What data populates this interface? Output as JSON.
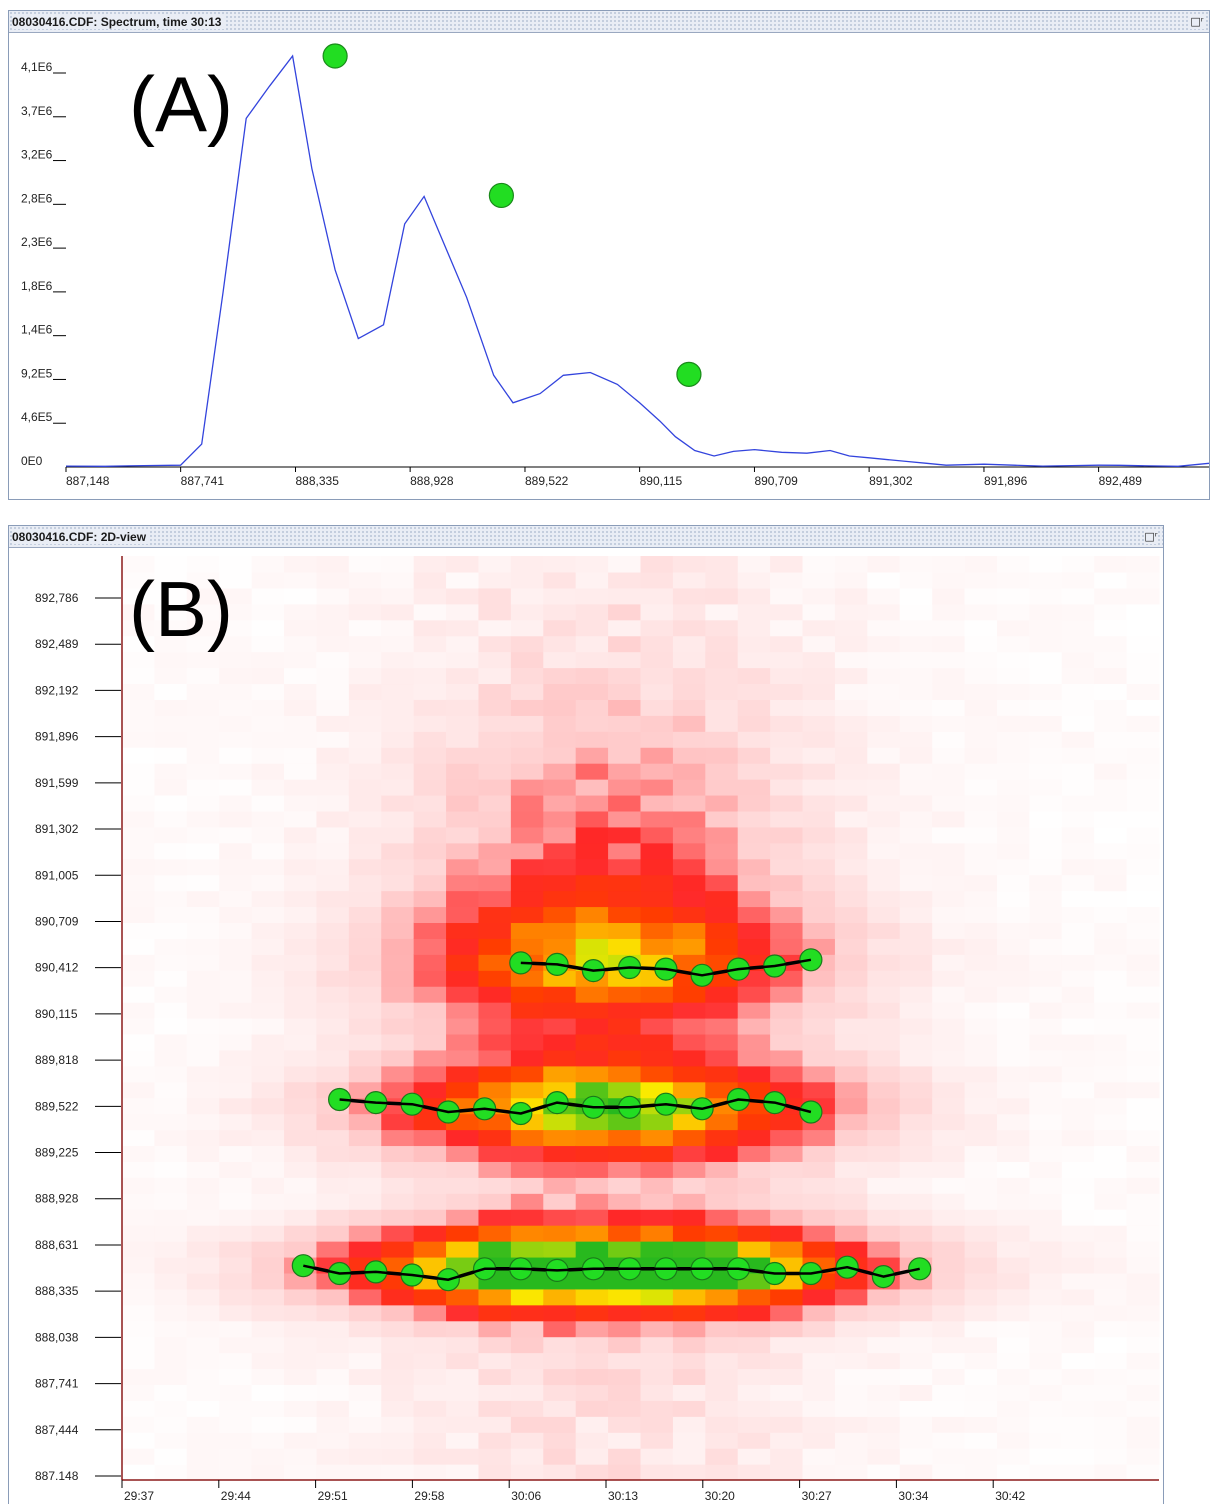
{
  "panel_a": {
    "window_title": "08030416.CDF: Spectrum, time 30:13",
    "panel_label": "(A)",
    "chart_data": {
      "type": "line",
      "title": "",
      "xlabel": "",
      "ylabel": "",
      "x_ticks": [
        "887,148",
        "887,741",
        "888,335",
        "888,928",
        "889,522",
        "890,115",
        "890,709",
        "891,302",
        "891,896",
        "892,489"
      ],
      "y_ticks": [
        "0E0",
        "4,6E5",
        "9,2E5",
        "1,4E6",
        "1,8E6",
        "2,3E6",
        "2,8E6",
        "3,2E6",
        "3,7E6",
        "4,1E6"
      ],
      "xlim": [
        887.148,
        893.06
      ],
      "ylim": [
        0,
        4600000.0
      ],
      "series": [
        {
          "color": "#3344dd",
          "x": [
            887.148,
            887.35,
            887.55,
            887.741,
            887.85,
            887.96,
            888.08,
            888.2,
            888.32,
            888.42,
            888.54,
            888.66,
            888.79,
            888.9,
            889.0,
            889.08,
            889.22,
            889.36,
            889.46,
            889.6,
            889.72,
            889.86,
            890.0,
            890.115,
            890.22,
            890.3,
            890.4,
            890.5,
            890.6,
            890.709,
            890.85,
            890.98,
            891.1,
            891.2,
            891.302,
            891.4,
            891.5,
            891.6,
            891.7,
            891.896,
            892.05,
            892.2,
            892.35,
            892.489,
            892.6,
            892.75,
            892.9,
            893.06
          ],
          "y": [
            10000,
            8000,
            15000,
            20000,
            250000,
            1900000,
            3800000,
            4150000,
            4480000,
            3250000,
            2150000,
            1400000,
            1550000,
            2650000,
            2950000,
            2550000,
            1850000,
            1000000,
            700000,
            800000,
            1000000,
            1030000,
            900000,
            700000,
            500000,
            330000,
            180000,
            120000,
            170000,
            190000,
            160000,
            150000,
            180000,
            120000,
            100000,
            80000,
            60000,
            40000,
            20000,
            30000,
            20000,
            10000,
            15000,
            20000,
            18000,
            12000,
            8000,
            40000
          ]
        }
      ],
      "markers": [
        {
          "x": 888.54,
          "y": 4480000,
          "color": "#22dd22"
        },
        {
          "x": 889.4,
          "y": 2960000,
          "color": "#22dd22"
        },
        {
          "x": 890.37,
          "y": 1010000,
          "color": "#22dd22"
        }
      ]
    }
  },
  "panel_b": {
    "window_title": "08030416.CDF: 2D-view",
    "panel_label": "(B)",
    "chart_data": {
      "type": "heatmap",
      "title": "",
      "xlabel": "",
      "ylabel": "",
      "x_ticks": [
        "29:37",
        "29:44",
        "29:51",
        "29:58",
        "30:06",
        "30:13",
        "30:20",
        "30:27",
        "30:34",
        "30:42"
      ],
      "y_ticks": [
        "892,786",
        "892,489",
        "892,192",
        "891,896",
        "891,599",
        "891,302",
        "891,005",
        "890,709",
        "890,412",
        "890,115",
        "889,818",
        "889,522",
        "889,225",
        "888,928",
        "888,631",
        "888,335",
        "888,038",
        "887,741",
        "887,444",
        "887.148"
      ],
      "colormap": [
        "#ffffff",
        "#ffb0b0",
        "#ff2020",
        "#ff8a00",
        "#ffee00",
        "#33bb22"
      ],
      "traces": [
        {
          "color": "#000000",
          "marker_color": "#22dd22",
          "points": [
            [
              30.1,
              890.43
            ],
            [
              30.15,
              890.42
            ],
            [
              30.2,
              890.38
            ],
            [
              30.25,
              890.4
            ],
            [
              30.3,
              890.39
            ],
            [
              30.35,
              890.35
            ],
            [
              30.4,
              890.39
            ],
            [
              30.45,
              890.41
            ],
            [
              30.5,
              890.45
            ]
          ]
        },
        {
          "color": "#000000",
          "marker_color": "#22dd22",
          "points": [
            [
              29.85,
              889.55
            ],
            [
              29.9,
              889.53
            ],
            [
              29.95,
              889.52
            ],
            [
              30.0,
              889.47
            ],
            [
              30.05,
              889.49
            ],
            [
              30.1,
              889.46
            ],
            [
              30.15,
              889.53
            ],
            [
              30.2,
              889.5
            ],
            [
              30.25,
              889.5
            ],
            [
              30.3,
              889.52
            ],
            [
              30.35,
              889.49
            ],
            [
              30.4,
              889.55
            ],
            [
              30.45,
              889.53
            ],
            [
              30.5,
              889.47
            ]
          ]
        },
        {
          "color": "#000000",
          "marker_color": "#22dd22",
          "points": [
            [
              29.8,
              888.48
            ],
            [
              29.85,
              888.43
            ],
            [
              29.9,
              888.44
            ],
            [
              29.95,
              888.42
            ],
            [
              30.0,
              888.39
            ],
            [
              30.05,
              888.46
            ],
            [
              30.1,
              888.46
            ],
            [
              30.15,
              888.45
            ],
            [
              30.2,
              888.46
            ],
            [
              30.25,
              888.46
            ],
            [
              30.3,
              888.46
            ],
            [
              30.35,
              888.46
            ],
            [
              30.4,
              888.46
            ],
            [
              30.45,
              888.43
            ],
            [
              30.5,
              888.43
            ],
            [
              30.55,
              888.47
            ],
            [
              30.6,
              888.41
            ],
            [
              30.65,
              888.46
            ]
          ]
        }
      ]
    }
  }
}
